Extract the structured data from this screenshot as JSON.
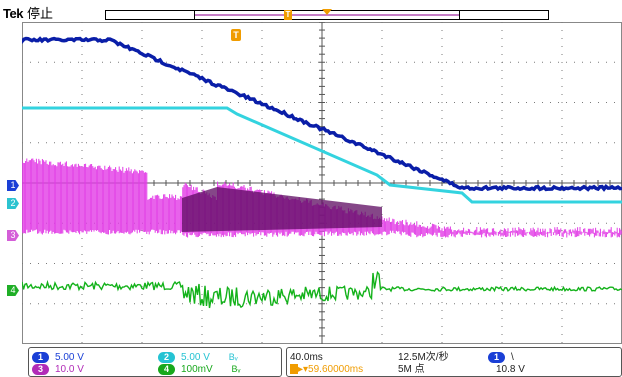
{
  "header": {
    "brand": "Tek",
    "status": "停止"
  },
  "markers": {
    "trigger_pos_label": "T",
    "ref_label": "T",
    "ch1": "1",
    "ch2": "2",
    "ch3": "3",
    "ch4": "4"
  },
  "readout": {
    "ch1": {
      "num": "1",
      "scale": "5.00 V",
      "color": "#1a3fd6"
    },
    "ch2": {
      "num": "2",
      "scale": "5.00 V",
      "color": "#25c3d3",
      "bw": "Bᵥ"
    },
    "ch3": {
      "num": "3",
      "scale": "10.0 V",
      "color": "#b12bb7"
    },
    "ch4": {
      "num": "4",
      "scale": "100mV",
      "color": "#17a81b",
      "bw": "Bᵥ"
    },
    "timebase": "40.0ms",
    "sample_rate": "12.5M次/秒",
    "trigger_pos": "59.60000ms",
    "record_length": "5M 点",
    "trig_source": "1",
    "trig_slope": "\\",
    "trig_level": "10.8 V"
  },
  "colors": {
    "ch1": "#0a1ea8",
    "ch2": "#33d3df",
    "ch3": "#e23be6",
    "ch3_dark": "#5c0a60",
    "ch4": "#13b21a",
    "grid": "#7a7a7a",
    "accent": "#f09c00"
  }
}
